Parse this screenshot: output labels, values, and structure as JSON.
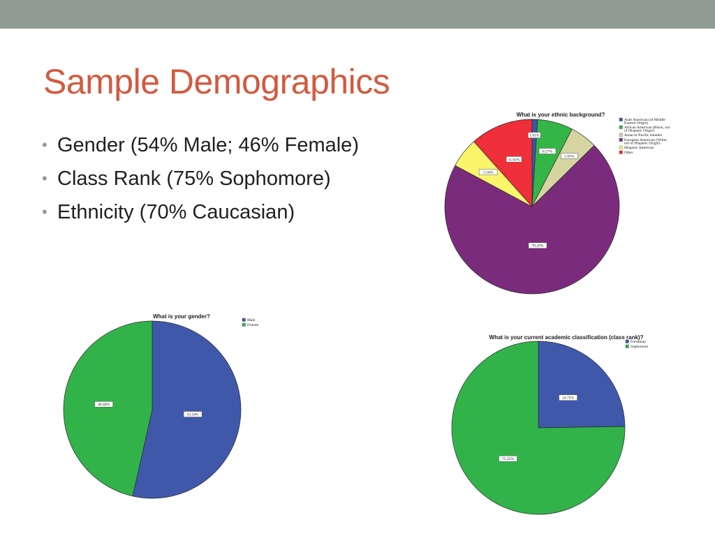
{
  "slide": {
    "title": "Sample Demographics",
    "bullets": [
      "Gender (54% Male; 46% Female)",
      "Class Rank (75% Sophomore)",
      "Ethnicity (70% Caucasian)"
    ]
  },
  "colors": {
    "topbar": "#8f9c93",
    "title": "#d35a3f",
    "bullet_marker": "#8f9c93",
    "text": "#1f1f1f"
  },
  "chart_data": [
    {
      "type": "pie",
      "title": "What is your ethnic background?",
      "categories": [
        "Arab American (of Middle Eastern Origin)",
        "African American (Black, not of Hispanic Origin)",
        "Asian or Pacific Islander",
        "European American (White, not of Hispanic Origin)",
        "Hispanic American",
        "Other"
      ],
      "legend_lines": [
        [
          "Arab American (of Middle",
          "Eastern Origin)"
        ],
        [
          "African American (Black, not",
          "of Hispanic Origin)"
        ],
        [
          "Asian or Pacific Islander"
        ],
        [
          "European American (White,",
          "not of Hispanic Origin)"
        ],
        [
          "Hispanic American"
        ],
        [
          "Other"
        ]
      ],
      "values": [
        1.01,
        6.57,
        5.05,
        70.2,
        5.56,
        11.62
      ],
      "labels": [
        "1.01%",
        "6.57%",
        "5.05%",
        "70.20%",
        "5.56%",
        "11.62%"
      ],
      "colors": [
        "#3d56a6",
        "#34b548",
        "#d6d4a0",
        "#7b2b7c",
        "#fbf56c",
        "#ef2f39"
      ],
      "legend": "right",
      "start_angle_deg": 0,
      "direction": "clockwise"
    },
    {
      "type": "pie",
      "title": "What is your gender?",
      "categories": [
        "Male",
        "Female"
      ],
      "legend_lines": [
        [
          "Male"
        ],
        [
          "Female"
        ]
      ],
      "values": [
        53.54,
        46.46
      ],
      "labels": [
        "53.54%",
        "46.46%"
      ],
      "colors": [
        "#3f58aa",
        "#32b34a"
      ],
      "legend": "right",
      "start_angle_deg": 0,
      "direction": "clockwise"
    },
    {
      "type": "pie",
      "title": "What is your current academic classification (class rank)?",
      "categories": [
        "Freshman",
        "Sophomore"
      ],
      "legend_lines": [
        [
          "Freshman"
        ],
        [
          "Sophomore"
        ]
      ],
      "values": [
        24.75,
        75.25
      ],
      "labels": [
        "24.75%",
        "75.25%"
      ],
      "colors": [
        "#3f58aa",
        "#32b34a"
      ],
      "legend": "right",
      "start_angle_deg": 0,
      "direction": "clockwise"
    }
  ]
}
